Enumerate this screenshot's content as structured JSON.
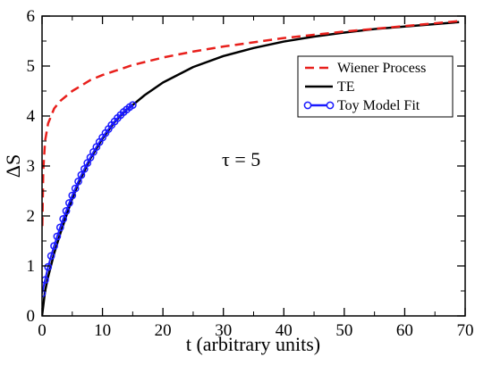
{
  "chart_data": {
    "type": "line",
    "xlabel": "t (arbitrary units)",
    "ylabel": "ΔS",
    "xlim": [
      0,
      70
    ],
    "ylim": [
      0,
      6
    ],
    "xticks": [
      "0",
      "10",
      "20",
      "30",
      "40",
      "50",
      "60",
      "70"
    ],
    "yticks": [
      "0",
      "1",
      "2",
      "3",
      "4",
      "5",
      "6"
    ],
    "grid": false,
    "legend_position": "top-right",
    "annotation": "τ = 5",
    "series": [
      {
        "name": "Wiener Process",
        "color": "#e8201c",
        "style": "dashed",
        "x": [
          0.05,
          0.2,
          0.5,
          1,
          2,
          3,
          5,
          8,
          10,
          15,
          20,
          25,
          30,
          40,
          50,
          60,
          69
        ],
        "y": [
          1.8,
          2.9,
          3.5,
          3.85,
          4.15,
          4.3,
          4.5,
          4.72,
          4.82,
          5.02,
          5.17,
          5.29,
          5.39,
          5.56,
          5.69,
          5.8,
          5.9
        ]
      },
      {
        "name": "TE",
        "color": "#000000",
        "style": "solid",
        "x": [
          0,
          0.5,
          1,
          2,
          3,
          4,
          5,
          6,
          8,
          10,
          12,
          14,
          15,
          17,
          20,
          25,
          30,
          35,
          40,
          45,
          50,
          55,
          60,
          65,
          69
        ],
        "y": [
          0,
          0.5,
          0.78,
          1.25,
          1.64,
          2.0,
          2.35,
          2.65,
          3.15,
          3.55,
          3.88,
          4.13,
          4.22,
          4.42,
          4.67,
          4.98,
          5.2,
          5.36,
          5.49,
          5.59,
          5.67,
          5.74,
          5.79,
          5.84,
          5.88
        ]
      },
      {
        "name": "Toy Model Fit",
        "color": "#1a1aff",
        "style": "line-markers",
        "marker": "open-circle",
        "x": [
          0,
          0.5,
          1,
          1.5,
          2,
          2.5,
          3,
          3.5,
          4,
          4.5,
          5,
          5.5,
          6,
          6.5,
          7,
          7.5,
          8,
          8.5,
          9,
          9.5,
          10,
          10.5,
          11,
          11.5,
          12,
          12.5,
          13,
          13.5,
          14,
          14.5,
          15
        ],
        "y": [
          0.45,
          0.72,
          0.98,
          1.2,
          1.4,
          1.59,
          1.77,
          1.94,
          2.1,
          2.26,
          2.41,
          2.55,
          2.69,
          2.82,
          2.94,
          3.06,
          3.17,
          3.28,
          3.38,
          3.48,
          3.57,
          3.66,
          3.74,
          3.82,
          3.89,
          3.96,
          4.02,
          4.08,
          4.13,
          4.18,
          4.22
        ]
      }
    ]
  }
}
